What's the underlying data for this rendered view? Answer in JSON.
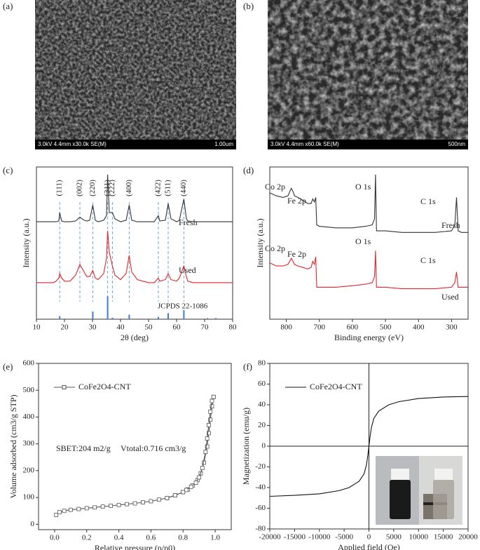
{
  "panel_labels": [
    "(a)",
    "(b)",
    "(c)",
    "(d)",
    "(e)",
    "(f)"
  ],
  "images": [
    {
      "caption": "3.0kV 4.4mm x30.0k SE(M)",
      "scale": "1.00um"
    },
    {
      "caption": "3.0kV 4.4mm x60.0k SE(M)",
      "scale": "500nm"
    }
  ],
  "chart_data": [
    {
      "type": "line",
      "xlabel": "2θ (deg)",
      "ylabel": "Intensity (a.u.)",
      "xlim": [
        10,
        80
      ],
      "ylim": [
        0,
        100
      ],
      "xticks": [
        10,
        20,
        30,
        40,
        50,
        60,
        70,
        80
      ],
      "x": [
        10,
        12,
        14,
        16,
        17,
        18,
        18.3,
        19,
        20,
        22,
        24,
        25.5,
        27,
        28,
        29,
        30.1,
        31,
        32,
        34,
        35,
        35.4,
        36,
        37.1,
        38,
        40,
        42,
        43.1,
        44,
        46,
        48,
        50,
        52,
        53.5,
        54,
        56,
        57,
        58,
        60,
        61,
        62.6,
        63.5,
        64,
        66,
        68,
        70,
        72,
        74,
        76,
        78,
        80
      ],
      "series": [
        {
          "name": "Fresh",
          "color": "#333333",
          "values": [
            64,
            64,
            64,
            64,
            64,
            64.5,
            70,
            64.5,
            64,
            64,
            64.5,
            67,
            65,
            64.5,
            65,
            75,
            65,
            64,
            65,
            68,
            95,
            70,
            70,
            66,
            64,
            65,
            75,
            65,
            64,
            64,
            64,
            64,
            68,
            64.5,
            65,
            76,
            66,
            64,
            65,
            79,
            66,
            64.5,
            64,
            64,
            64,
            64,
            64,
            64,
            64,
            64
          ]
        },
        {
          "name": "Used",
          "color": "#e0262a",
          "values": [
            24,
            24,
            24,
            24,
            25,
            27,
            30,
            27,
            25,
            25,
            29,
            36,
            31,
            28,
            28,
            32,
            27,
            26,
            30,
            40,
            58,
            44,
            35,
            29,
            26,
            30,
            42,
            31,
            26,
            25,
            24,
            24,
            27,
            25,
            26,
            30,
            26,
            25,
            27,
            35,
            28,
            25,
            24,
            24,
            24,
            24,
            24,
            24,
            24,
            24
          ]
        }
      ],
      "reference": {
        "name": "JCPDS 22-1086",
        "color": "#3a7fd5",
        "x": [
          18.3,
          30.1,
          35.4,
          37.1,
          43.1,
          53.5,
          57,
          62.6,
          71,
          74
        ],
        "values": [
          2,
          5,
          15,
          1,
          3,
          1.5,
          4,
          6,
          0.7,
          0.8
        ]
      },
      "peaks": [
        {
          "label": "(111)",
          "x": 18.3
        },
        {
          "label": "(002)",
          "x": 25.5
        },
        {
          "label": "(220)",
          "x": 30.1
        },
        {
          "label": "(311)",
          "x": 35.4
        },
        {
          "label": "(222)",
          "x": 37.1
        },
        {
          "label": "(400)",
          "x": 43.1
        },
        {
          "label": "(422)",
          "x": 53.5
        },
        {
          "label": "(511)",
          "x": 57
        },
        {
          "label": "(440)",
          "x": 62.6
        }
      ]
    },
    {
      "type": "line",
      "xlabel": "Binding energy (eV)",
      "ylabel": "Intensity (a.u.)",
      "xlim": [
        850,
        250
      ],
      "ylim": [
        0,
        100
      ],
      "xticks": [
        800,
        700,
        600,
        500,
        400,
        300
      ],
      "x": [
        850,
        830,
        810,
        795,
        785,
        780,
        775,
        765,
        750,
        735,
        725,
        720,
        715,
        711,
        708,
        700,
        650,
        600,
        560,
        540,
        533,
        530,
        527,
        520,
        500,
        450,
        400,
        350,
        300,
        290,
        285,
        280,
        270,
        250
      ],
      "series": [
        {
          "name": "Fresh",
          "color": "#333333",
          "values": [
            83,
            81,
            80,
            81,
            86,
            84,
            81,
            80,
            78,
            76,
            76,
            79,
            77,
            80,
            62,
            61,
            60,
            60,
            61,
            62,
            66,
            95,
            58,
            58,
            58,
            57,
            57,
            57,
            58,
            62,
            80,
            58,
            57,
            57
          ]
        },
        {
          "name": "Used",
          "color": "#e0262a",
          "values": [
            37,
            35,
            35,
            36,
            40,
            38,
            36,
            35,
            34,
            33,
            34,
            38,
            36,
            41,
            21,
            21,
            21,
            22,
            23,
            24,
            28,
            45,
            21,
            21,
            21,
            20,
            20,
            20,
            21,
            24,
            31,
            21,
            21,
            21
          ]
        }
      ],
      "annotations": [
        "Co 2p",
        "Fe 2p",
        "O 1s",
        "C 1s",
        "Co 2p",
        "Fe 2p",
        "O 1s",
        "C 1s"
      ]
    },
    {
      "type": "line",
      "markers": true,
      "xlabel": "Relative pressure (p/p0)",
      "ylabel": "Volume adsorbed (cm3/g STP)",
      "xlim": [
        -0.1,
        1.1
      ],
      "ylim": [
        -20,
        600
      ],
      "xticks": [
        {
          "value": 0,
          "label": "0.0"
        },
        {
          "value": 0.2,
          "label": "0.2"
        },
        {
          "value": 0.4,
          "label": "0.4"
        },
        {
          "value": 0.6,
          "label": "0.6"
        },
        {
          "value": 0.8,
          "label": "0.8"
        },
        {
          "value": 1,
          "label": "1.0"
        }
      ],
      "yticks": [
        0,
        100,
        200,
        300,
        400,
        500,
        600
      ],
      "x": [
        0.01,
        0.03,
        0.06,
        0.1,
        0.15,
        0.2,
        0.25,
        0.3,
        0.35,
        0.4,
        0.45,
        0.5,
        0.55,
        0.6,
        0.65,
        0.7,
        0.75,
        0.8,
        0.83,
        0.86,
        0.89,
        0.91,
        0.93,
        0.95,
        0.96,
        0.97,
        0.98,
        0.99
      ],
      "series": [
        {
          "name": "CoFe2O4-CNT",
          "color": "#555555",
          "values": [
            35,
            45,
            50,
            54,
            57,
            60,
            63,
            66,
            69,
            72,
            75,
            78,
            82,
            86,
            92,
            98,
            108,
            120,
            130,
            145,
            165,
            190,
            230,
            290,
            340,
            390,
            440,
            475
          ]
        },
        {
          "color": "#555555",
          "x": [
            0.99,
            0.98,
            0.97,
            0.96,
            0.95,
            0.94,
            0.92,
            0.9,
            0.88,
            0.85,
            0.82,
            0.8,
            0.75,
            0.7
          ],
          "values": [
            475,
            460,
            420,
            370,
            320,
            270,
            210,
            175,
            155,
            140,
            128,
            120,
            108,
            98
          ]
        }
      ],
      "annotations": [
        "SBET:204 m2/g",
        "Vtotal:0.716 cm3/g"
      ]
    },
    {
      "type": "line",
      "zero_lines": true,
      "xlabel": "Applied field (Oe)",
      "ylabel": "Magnetization (emu/g)",
      "xlim": [
        -20000,
        20000
      ],
      "ylim": [
        -80,
        80
      ],
      "xticks": [
        -20000,
        -15000,
        -10000,
        -5000,
        0,
        5000,
        10000,
        15000,
        20000
      ],
      "yticks": [
        -80,
        -60,
        -40,
        -20,
        0,
        20,
        40,
        60,
        80
      ],
      "x": [
        -20000,
        -15000,
        -10000,
        -6000,
        -4000,
        -2000,
        -1000,
        -500,
        -200,
        0,
        200,
        500,
        1000,
        2000,
        4000,
        6000,
        10000,
        15000,
        20000
      ],
      "series": [
        {
          "name": "CoFe2O4-CNT",
          "color": "#111111",
          "values": [
            -48.5,
            -47.5,
            -46,
            -43,
            -40,
            -34,
            -27,
            -18,
            -8,
            0,
            8,
            18,
            27,
            34,
            40,
            43,
            46,
            47.5,
            48
          ]
        }
      ]
    }
  ]
}
